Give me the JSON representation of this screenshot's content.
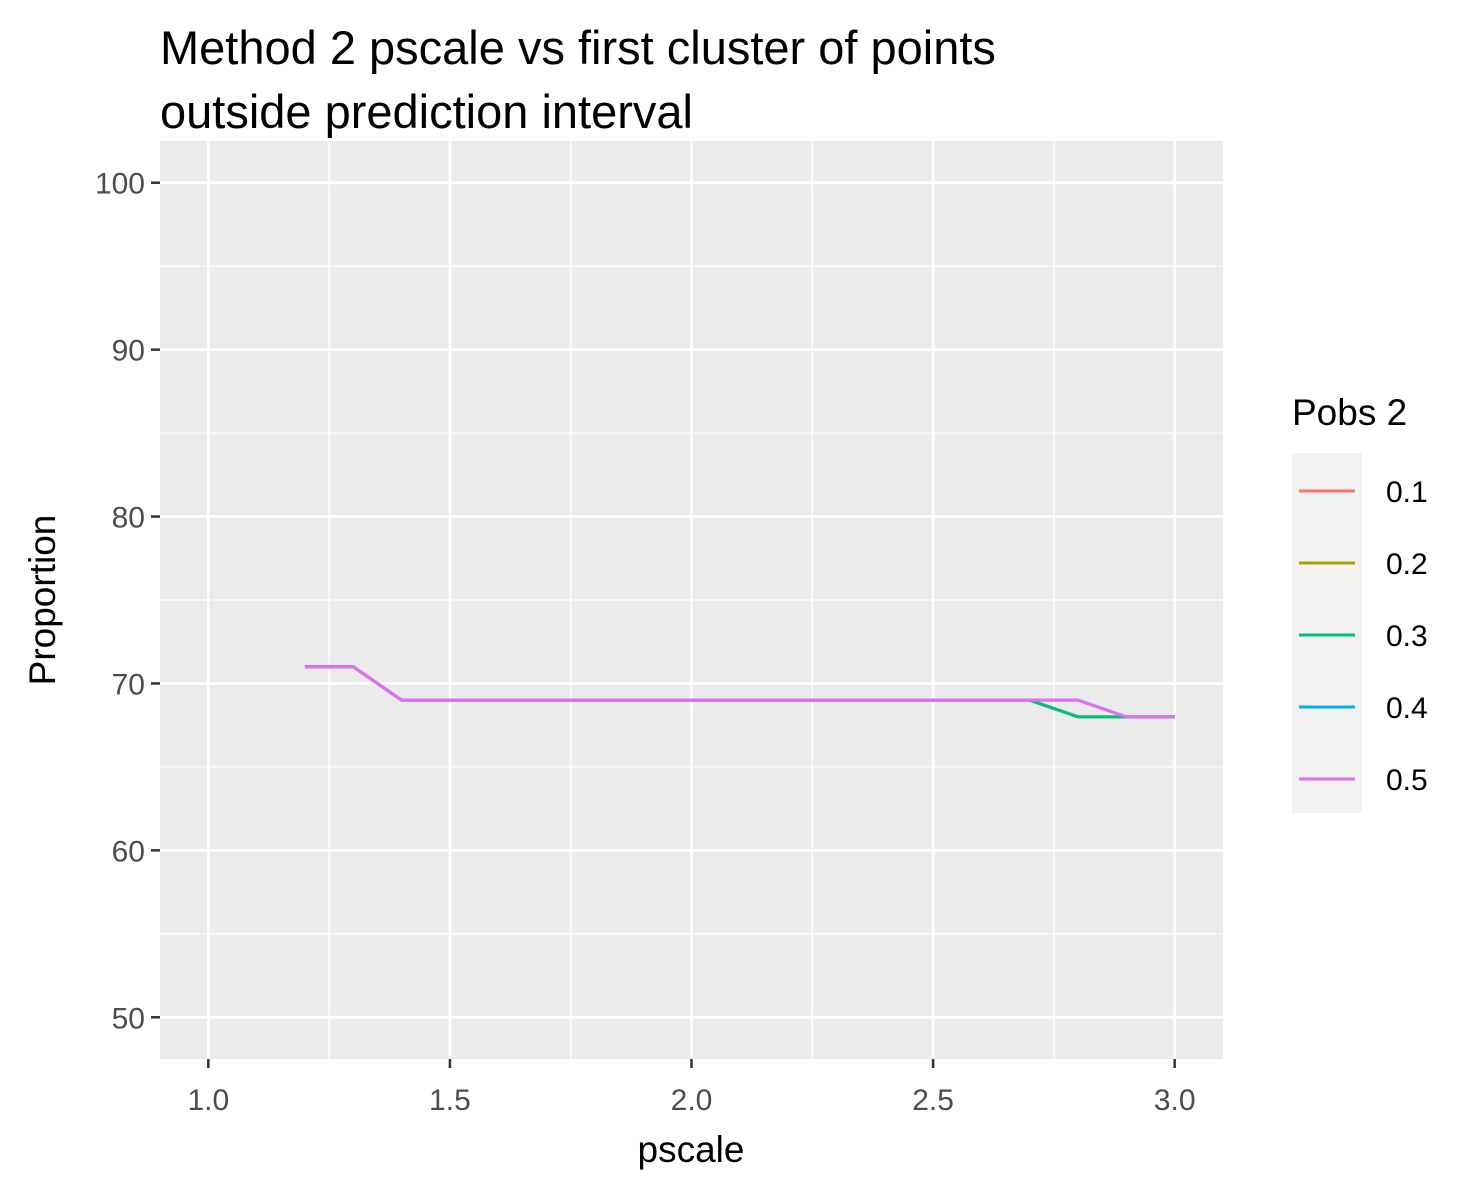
{
  "chart_data": {
    "type": "line",
    "title_lines": [
      "Method 2 pscale vs first cluster of points",
      "outside prediction interval"
    ],
    "xlabel": "pscale",
    "ylabel": "Proportion",
    "xlim": [
      0.9,
      3.1
    ],
    "ylim": [
      47.5,
      102.5
    ],
    "x_ticks": [
      1.0,
      1.5,
      2.0,
      2.5,
      3.0
    ],
    "x_tick_labels": [
      "1.0",
      "1.5",
      "2.0",
      "2.5",
      "3.0"
    ],
    "y_ticks": [
      50,
      60,
      70,
      80,
      90,
      100
    ],
    "y_tick_labels": [
      "50",
      "60",
      "70",
      "80",
      "90",
      "100"
    ],
    "grid": true,
    "legend": {
      "title": "Pobs 2",
      "position": "right"
    },
    "x": [
      1.2,
      1.3,
      1.4,
      1.5,
      1.6,
      1.7,
      1.8,
      1.9,
      2.0,
      2.1,
      2.2,
      2.3,
      2.4,
      2.5,
      2.6,
      2.7,
      2.8,
      2.9,
      3.0
    ],
    "series": [
      {
        "name": "0.1",
        "color": "#F8766D",
        "values": [
          71,
          71,
          69,
          69,
          69,
          69,
          69,
          69,
          69,
          69,
          69,
          69,
          69,
          69,
          69,
          69,
          68,
          68,
          68
        ]
      },
      {
        "name": "0.2",
        "color": "#A3A500",
        "values": [
          71,
          71,
          69,
          69,
          69,
          69,
          69,
          69,
          69,
          69,
          69,
          69,
          69,
          69,
          69,
          69,
          68,
          68,
          68
        ]
      },
      {
        "name": "0.3",
        "color": "#00BF7D",
        "values": [
          71,
          71,
          69,
          69,
          69,
          69,
          69,
          69,
          69,
          69,
          69,
          69,
          69,
          69,
          69,
          69,
          68,
          68,
          68
        ]
      },
      {
        "name": "0.4",
        "color": "#00B0F6",
        "values": [
          71,
          71,
          69,
          69,
          69,
          69,
          69,
          69,
          69,
          69,
          69,
          69,
          69,
          69,
          69,
          69,
          69,
          68,
          68
        ]
      },
      {
        "name": "0.5",
        "color": "#E76BF3",
        "values": [
          71,
          71,
          69,
          69,
          69,
          69,
          69,
          69,
          69,
          69,
          69,
          69,
          69,
          69,
          69,
          69,
          69,
          68,
          68
        ]
      }
    ]
  }
}
